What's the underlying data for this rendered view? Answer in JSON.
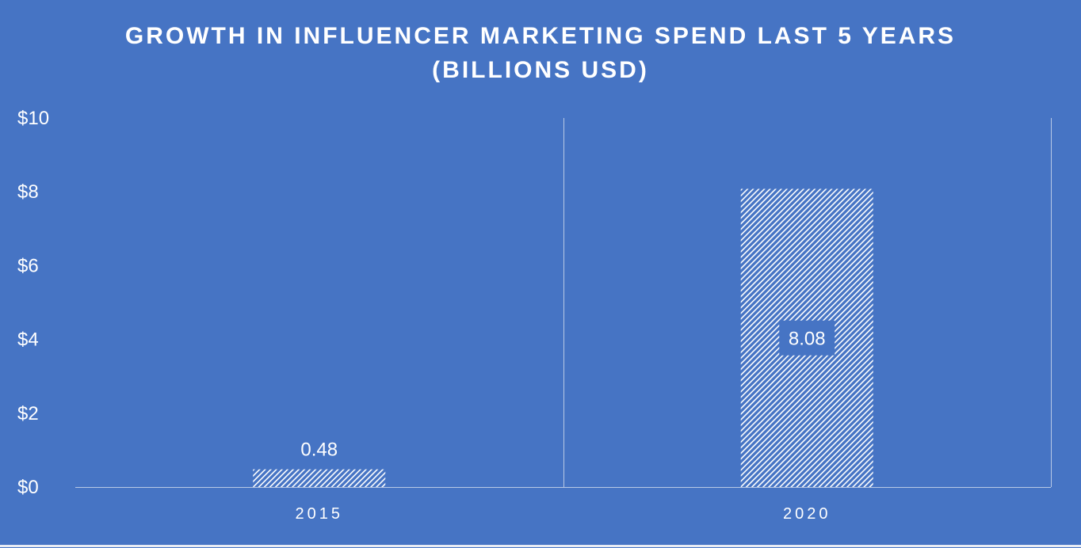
{
  "chart_data": {
    "type": "bar",
    "title_lines": [
      "GROWTH IN INFLUENCER MARKETING SPEND LAST 5 YEARS",
      "(BILLIONS USD)"
    ],
    "categories": [
      "2015",
      "2020"
    ],
    "values": [
      0.48,
      8.08
    ],
    "data_labels": [
      "0.48",
      "8.08"
    ],
    "ylim": [
      0,
      10
    ],
    "y_ticks": [
      {
        "value": 0,
        "label": "$0"
      },
      {
        "value": 2,
        "label": "$2"
      },
      {
        "value": 4,
        "label": "$4"
      },
      {
        "value": 6,
        "label": "$6"
      },
      {
        "value": 8,
        "label": "$8"
      },
      {
        "value": 10,
        "label": "$10"
      }
    ],
    "xlabel": "",
    "ylabel": "",
    "grid": "vertical category separators",
    "legend": "none",
    "bar_fill": "diagonal hatch white on blue",
    "colors": {
      "background": "#4674c4",
      "bar_hatch": "#ffffff",
      "bar_base": "#4674c4",
      "text": "#ffffff",
      "axis": "#b9c9e6",
      "label_box": "#4674c4"
    }
  }
}
